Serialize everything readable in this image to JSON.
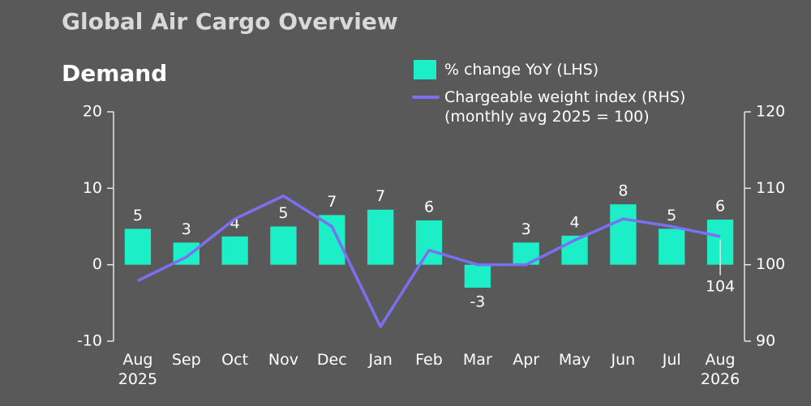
{
  "title": "Global Air Cargo Overview",
  "chart_data": {
    "type": "bar-line",
    "title": "Demand",
    "categories": [
      "Aug 2025",
      "Sep",
      "Oct",
      "Nov",
      "Dec",
      "Jan",
      "Feb",
      "Mar",
      "Apr",
      "May",
      "Jun",
      "Jul",
      "Aug 2026"
    ],
    "series": [
      {
        "name": "% change YoY (LHS)",
        "color": "#1cefc7",
        "type": "bar",
        "values": [
          4.7,
          2.9,
          3.7,
          5.0,
          6.5,
          7.2,
          5.8,
          -3.0,
          2.9,
          3.8,
          7.9,
          4.7,
          5.9
        ],
        "value_labels": [
          "5",
          "3",
          "4",
          "5",
          "7",
          "7",
          "6",
          "-3",
          "3",
          "4",
          "8",
          "5",
          "6"
        ]
      },
      {
        "name": "Chargeable weight index (RHS) (monthly avg 2025 = 100)",
        "color": "#7b6ff2",
        "type": "line",
        "axis": "y2",
        "values": [
          97.9,
          101.0,
          106.0,
          109.0,
          105.0,
          91.9,
          101.9,
          100.0,
          100.0,
          103.2,
          106.0,
          105.0,
          103.7
        ],
        "value_labels": [
          null,
          null,
          null,
          null,
          null,
          null,
          null,
          null,
          null,
          null,
          null,
          null,
          "104"
        ]
      }
    ],
    "ylim": [
      -10,
      20
    ],
    "yticks": [
      -10,
      0,
      10,
      20
    ],
    "y2lim": [
      90,
      120
    ],
    "y2ticks": [
      90,
      100,
      110,
      120
    ]
  }
}
